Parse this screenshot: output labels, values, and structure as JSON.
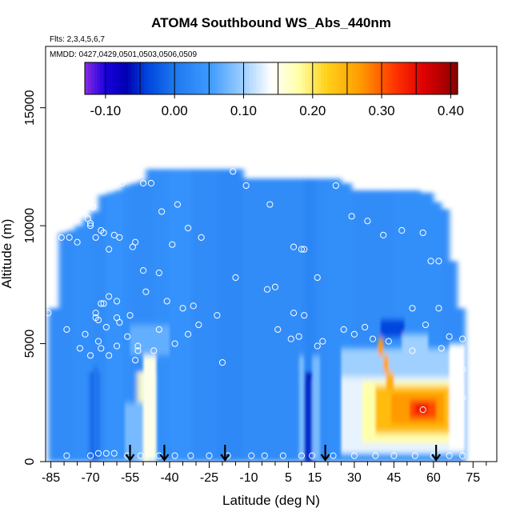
{
  "chart_data": {
    "type": "heatmap",
    "title": "ATOM4 Southbound WS_Abs_440nm",
    "subtitle_flights": "Flts: 2,3,4,5,6,7",
    "subtitle_dates": "MMDD: 0427,0429,0501,0503,0506,0509",
    "xlabel": "Latitude (deg N)",
    "ylabel": "Altitude (m)",
    "xlim": [
      -87,
      84
    ],
    "ylim": [
      0,
      17600
    ],
    "x_ticks": [
      -85,
      -70,
      -55,
      -40,
      -25,
      -10,
      5,
      15,
      30,
      45,
      60,
      75
    ],
    "x_tick_labels": [
      "-85",
      "-70",
      "-55",
      "-40",
      "-25",
      "-10",
      "5",
      "15",
      "30",
      "45",
      "60",
      "75"
    ],
    "x_minor_ticks": [
      -80,
      -75,
      -65,
      -60,
      -50,
      -45,
      -35,
      -30,
      -20,
      -15,
      -5,
      0,
      10,
      20,
      25,
      35,
      40,
      50,
      55,
      65,
      70,
      80
    ],
    "y_ticks": [
      0,
      5000,
      10000,
      15000
    ],
    "y_tick_labels": [
      "0",
      "5000",
      "10000",
      "15000"
    ],
    "colorbar": {
      "min": -0.13,
      "max": 0.41,
      "ticks": [
        -0.1,
        0.0,
        0.1,
        0.2,
        0.3,
        0.4
      ],
      "tick_labels": [
        "-0.10",
        "0.00",
        "0.10",
        "0.20",
        "0.30",
        "0.40"
      ],
      "boundaries": [
        -0.13,
        -0.1,
        -0.05,
        0.0,
        0.05,
        0.1,
        0.15,
        0.2,
        0.25,
        0.3,
        0.35,
        0.4,
        0.41
      ],
      "stops": [
        {
          "v": -0.13,
          "c": "#8a2be2"
        },
        {
          "v": -0.1,
          "c": "#1a00e0"
        },
        {
          "v": -0.07,
          "c": "#0000b0"
        },
        {
          "v": -0.04,
          "c": "#0044dd"
        },
        {
          "v": 0.0,
          "c": "#1e78ee"
        },
        {
          "v": 0.05,
          "c": "#3c99ff"
        },
        {
          "v": 0.1,
          "c": "#9fd0ff"
        },
        {
          "v": 0.14,
          "c": "#ffffff"
        },
        {
          "v": 0.18,
          "c": "#ffffa8"
        },
        {
          "v": 0.22,
          "c": "#ffd21a"
        },
        {
          "v": 0.27,
          "c": "#ff9a00"
        },
        {
          "v": 0.32,
          "c": "#ff3300"
        },
        {
          "v": 0.36,
          "c": "#e00000"
        },
        {
          "v": 0.41,
          "c": "#8a0000"
        }
      ]
    },
    "columns": [
      {
        "x0": -86,
        "x1": -82,
        "top": 6500,
        "level": 0.03,
        "surf": 0.03
      },
      {
        "x0": -82,
        "x1": -79,
        "top": 9700,
        "level": 0.03,
        "surf": 0.03
      },
      {
        "x0": -79,
        "x1": -76,
        "top": 9800,
        "level": 0.03,
        "surf": 0.03
      },
      {
        "x0": -76,
        "x1": -73,
        "top": 10000,
        "level": 0.035,
        "surf": 0.035
      },
      {
        "x0": -73,
        "x1": -70,
        "top": 10300,
        "level": 0.035,
        "surf": 0.035
      },
      {
        "x0": -70,
        "x1": -67,
        "top": 10600,
        "level": 0.03,
        "surf": -0.03
      },
      {
        "x0": -67,
        "x1": -64,
        "top": 11300,
        "level": 0.03,
        "surf": 0.03
      },
      {
        "x0": -64,
        "x1": -61,
        "top": 11400,
        "level": 0.04,
        "surf": 0.04
      },
      {
        "x0": -61,
        "x1": -58,
        "top": 11500,
        "level": 0.04,
        "surf": 0.04
      },
      {
        "x0": -58,
        "x1": -55,
        "top": 11700,
        "level": 0.035,
        "surf": 0.035
      },
      {
        "x0": -55,
        "x1": -52,
        "top": 11800,
        "level": 0.03,
        "surf": 0.03
      },
      {
        "x0": -52,
        "x1": -49,
        "top": 11900,
        "level": 0.03,
        "surf": 0.17
      },
      {
        "x0": -49,
        "x1": -46,
        "top": 12400,
        "level": 0.03,
        "surf": 0.08
      },
      {
        "x0": -46,
        "x1": -40,
        "top": 12400,
        "level": 0.035,
        "surf": 0.035
      },
      {
        "x0": -40,
        "x1": -32,
        "top": 12400,
        "level": 0.04,
        "surf": 0.04
      },
      {
        "x0": -32,
        "x1": -22,
        "top": 12400,
        "level": 0.03,
        "surf": 0.03
      },
      {
        "x0": -22,
        "x1": -12,
        "top": 12400,
        "level": 0.025,
        "surf": 0.025
      },
      {
        "x0": -12,
        "x1": -2,
        "top": 12000,
        "level": 0.03,
        "surf": 0.03
      },
      {
        "x0": -2,
        "x1": 6,
        "top": 12000,
        "level": 0.03,
        "surf": 0.03
      },
      {
        "x0": 6,
        "x1": 11,
        "top": 12000,
        "level": 0.03,
        "surf": 0.03
      },
      {
        "x0": 11,
        "x1": 15,
        "top": 12000,
        "level": 0.02,
        "surf": -0.06
      },
      {
        "x0": 15,
        "x1": 20,
        "top": 12000,
        "level": 0.03,
        "surf": 0.03
      },
      {
        "x0": 20,
        "x1": 25,
        "top": 12000,
        "level": 0.035,
        "surf": 0.035
      },
      {
        "x0": 25,
        "x1": 29,
        "top": 11800,
        "level": 0.035,
        "surf": 0.035
      },
      {
        "x0": 29,
        "x1": 35,
        "top": 11500,
        "level": 0.03,
        "surf": 0.03
      },
      {
        "x0": 35,
        "x1": 40,
        "top": 11500,
        "level": 0.03,
        "surf": 0.03
      },
      {
        "x0": 40,
        "x1": 45,
        "top": 11500,
        "level": 0.03,
        "surf": 0.03
      },
      {
        "x0": 45,
        "x1": 50,
        "top": 11500,
        "level": 0.035,
        "surf": 0.035
      },
      {
        "x0": 50,
        "x1": 55,
        "top": 11500,
        "level": 0.035,
        "surf": 0.035
      },
      {
        "x0": 55,
        "x1": 60,
        "top": 11400,
        "level": 0.035,
        "surf": 0.035
      },
      {
        "x0": 60,
        "x1": 63,
        "top": 11000,
        "level": 0.035,
        "surf": 0.035
      },
      {
        "x0": 63,
        "x1": 66,
        "top": 10700,
        "level": 0.03,
        "surf": 0.03
      },
      {
        "x0": 66,
        "x1": 69,
        "top": 8500,
        "level": 0.03,
        "surf": 0.03
      },
      {
        "x0": 69,
        "x1": 72,
        "top": 6500,
        "level": 0.03,
        "surf": 0.03
      }
    ],
    "features": [
      {
        "name": "south-white-plume",
        "x0": -50,
        "x1": -45,
        "y0": 0,
        "y1": 4500,
        "level": 0.15
      },
      {
        "name": "south-light-patch",
        "x0": -55,
        "x1": -40,
        "y0": 4500,
        "y1": 5800,
        "level": 0.07
      },
      {
        "name": "south-light-plume",
        "x0": -57,
        "x1": -50,
        "y0": 0,
        "y1": 2500,
        "level": 0.08
      },
      {
        "name": "western-streak",
        "x0": -69,
        "x1": -67,
        "y0": 200,
        "y1": 4000,
        "level": 0.0
      },
      {
        "name": "tropical-dark-streak",
        "x0": 11,
        "x1": 14,
        "y0": 0,
        "y1": 3500,
        "level": -0.05
      },
      {
        "name": "tropical-light-left",
        "x0": 9,
        "x1": 11,
        "y0": 0,
        "y1": 4500,
        "level": 0.08
      },
      {
        "name": "tropical-light-right",
        "x0": 14,
        "x1": 17,
        "y0": 0,
        "y1": 4500,
        "level": 0.08
      },
      {
        "name": "north-light-layer",
        "x0": 25,
        "x1": 71,
        "y0": 3600,
        "y1": 4800,
        "level": 0.1
      },
      {
        "name": "north-outer-haze",
        "x0": 25,
        "x1": 72,
        "y0": 300,
        "y1": 3600,
        "level": 0.13
      },
      {
        "name": "north-outer-layer",
        "x0": 33,
        "x1": 71,
        "y0": 800,
        "y1": 3400,
        "level": 0.18
      },
      {
        "name": "north-core",
        "x0": 38,
        "x1": 67,
        "y0": 1200,
        "y1": 3200,
        "level": 0.24
      },
      {
        "name": "north-inner-core",
        "x0": 44,
        "x1": 64,
        "y0": 1600,
        "y1": 2900,
        "level": 0.27
      },
      {
        "name": "north-hot-core",
        "x0": 51,
        "x1": 61,
        "y0": 1800,
        "y1": 2600,
        "level": 0.31
      },
      {
        "name": "north-hot-center",
        "x0": 53,
        "x1": 58,
        "y0": 2000,
        "y1": 2500,
        "level": 0.34
      },
      {
        "name": "north-plume-a",
        "x0": 39,
        "x1": 41,
        "y0": 4500,
        "y1": 5200,
        "level": 0.27
      },
      {
        "name": "north-plume-b",
        "x0": 41,
        "x1": 43,
        "y0": 3800,
        "y1": 4500,
        "level": 0.26
      },
      {
        "name": "north-plume-c",
        "x0": 42,
        "x1": 45,
        "y0": 3000,
        "y1": 3800,
        "level": 0.25
      },
      {
        "name": "north-dark-spot",
        "x0": 40,
        "x1": 49,
        "y0": 5300,
        "y1": 6000,
        "level": -0.04
      },
      {
        "name": "north-light-spot",
        "x0": 48,
        "x1": 58,
        "y0": 4600,
        "y1": 5400,
        "level": 0.1
      },
      {
        "name": "north-edge-white",
        "x0": 66,
        "x1": 72,
        "y0": 500,
        "y1": 5000,
        "level": 0.14
      }
    ],
    "arrows": [
      -55,
      -42,
      -19,
      19,
      61
    ],
    "obs_points": [
      [
        -86,
        6300
      ],
      [
        -81,
        9500
      ],
      [
        -78,
        9500
      ],
      [
        -75,
        9300
      ],
      [
        -71,
        10300
      ],
      [
        -70,
        10000
      ],
      [
        -70,
        10100
      ],
      [
        -69,
        10800
      ],
      [
        -68,
        9500
      ],
      [
        -66,
        9800
      ],
      [
        -65,
        9700
      ],
      [
        -63,
        9000
      ],
      [
        -61,
        9600
      ],
      [
        -59,
        9500
      ],
      [
        -58,
        11800
      ],
      [
        -54,
        9100
      ],
      [
        -53,
        9300
      ],
      [
        -50,
        11800
      ],
      [
        -47,
        11800
      ],
      [
        -43,
        10600
      ],
      [
        -39,
        9200
      ],
      [
        -37,
        10900
      ],
      [
        -33,
        9900
      ],
      [
        -28,
        9500
      ],
      [
        -16,
        12300
      ],
      [
        -11,
        11700
      ],
      [
        -2,
        10900
      ],
      [
        7,
        9100
      ],
      [
        10,
        9000
      ],
      [
        11,
        9000
      ],
      [
        23,
        11700
      ],
      [
        29,
        10400
      ],
      [
        35,
        10200
      ],
      [
        41,
        9600
      ],
      [
        48,
        9800
      ],
      [
        56,
        9700
      ],
      [
        59,
        8500
      ],
      [
        62,
        8500
      ],
      [
        67,
        11700
      ],
      [
        -50,
        8100
      ],
      [
        -44,
        8000
      ],
      [
        -49,
        7200
      ],
      [
        -63,
        7000
      ],
      [
        -65,
        6700
      ],
      [
        -66,
        6700
      ],
      [
        -60,
        6800
      ],
      [
        -55,
        6200
      ],
      [
        -41,
        6800
      ],
      [
        -35,
        6500
      ],
      [
        -31,
        6600
      ],
      [
        -22,
        6200
      ],
      [
        -15,
        7800
      ],
      [
        -3,
        7300
      ],
      [
        0,
        7400
      ],
      [
        7,
        6300
      ],
      [
        11,
        6200
      ],
      [
        16,
        7800
      ],
      [
        52,
        6500
      ],
      [
        62,
        6500
      ],
      [
        -79,
        5600
      ],
      [
        -72,
        5400
      ],
      [
        -68,
        6100
      ],
      [
        -68,
        6300
      ],
      [
        -67,
        6000
      ],
      [
        -64,
        5700
      ],
      [
        -60,
        6100
      ],
      [
        -59,
        5900
      ],
      [
        -56,
        5300
      ],
      [
        -52,
        4900
      ],
      [
        -53,
        4300
      ],
      [
        -52,
        4700
      ],
      [
        -46,
        4700
      ],
      [
        -44,
        5600
      ],
      [
        -38,
        5000
      ],
      [
        -33,
        5400
      ],
      [
        -29,
        5800
      ],
      [
        -20,
        4200
      ],
      [
        1,
        5600
      ],
      [
        6,
        5200
      ],
      [
        9,
        5300
      ],
      [
        16,
        4900
      ],
      [
        18,
        5100
      ],
      [
        26,
        5600
      ],
      [
        30,
        5400
      ],
      [
        34,
        5700
      ],
      [
        37,
        5200
      ],
      [
        43,
        5100
      ],
      [
        52,
        4700
      ],
      [
        57,
        5800
      ],
      [
        63,
        4800
      ],
      [
        66,
        5300
      ],
      [
        71,
        5200
      ],
      [
        -74,
        4800
      ],
      [
        -70,
        4500
      ],
      [
        -66,
        4800
      ],
      [
        -63,
        4500
      ],
      [
        -60,
        4900
      ],
      [
        -67,
        5100
      ],
      [
        -79,
        250
      ],
      [
        -70,
        250
      ],
      [
        -67,
        350
      ],
      [
        -64,
        350
      ],
      [
        -61,
        350
      ],
      [
        -56,
        250
      ],
      [
        -51,
        250
      ],
      [
        -44,
        250
      ],
      [
        -38,
        250
      ],
      [
        -32,
        250
      ],
      [
        -25,
        250
      ],
      [
        -18,
        250
      ],
      [
        -9,
        250
      ],
      [
        -4,
        250
      ],
      [
        3,
        250
      ],
      [
        10,
        250
      ],
      [
        14,
        250
      ],
      [
        22,
        250
      ],
      [
        30,
        250
      ],
      [
        38,
        250
      ],
      [
        45,
        250
      ],
      [
        53,
        250
      ],
      [
        60,
        250
      ],
      [
        66,
        250
      ],
      [
        71,
        250
      ],
      [
        56,
        2200
      ],
      [
        71,
        3900
      ],
      [
        71,
        2700
      ]
    ]
  }
}
